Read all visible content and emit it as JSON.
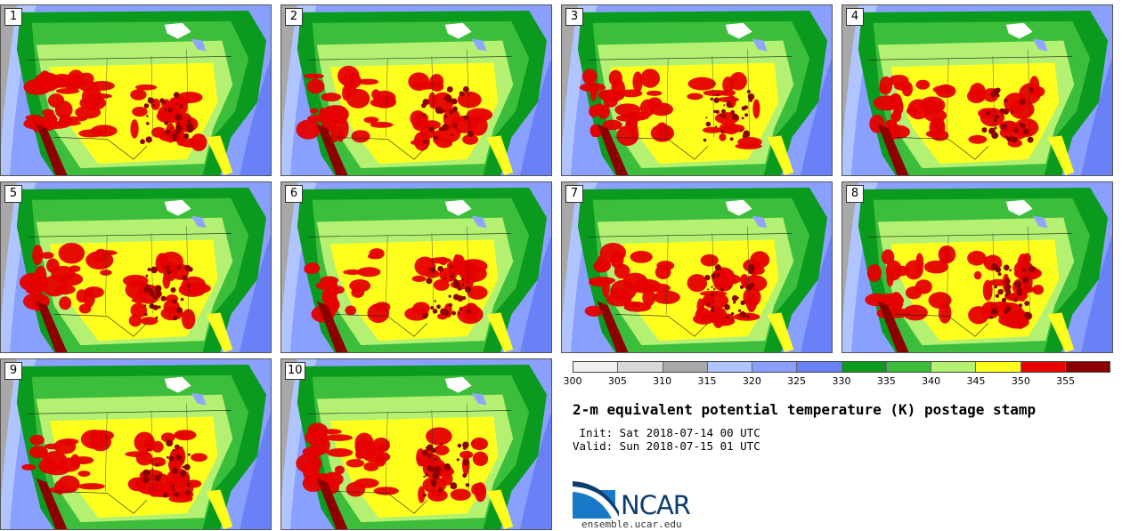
{
  "stamps": [
    {
      "label": "1"
    },
    {
      "label": "2"
    },
    {
      "label": "3"
    },
    {
      "label": "4"
    },
    {
      "label": "5"
    },
    {
      "label": "6"
    },
    {
      "label": "7"
    },
    {
      "label": "8"
    },
    {
      "label": "9"
    },
    {
      "label": "10"
    }
  ],
  "colorbar": {
    "colors": [
      "#f0f0f0",
      "#d8d8d8",
      "#a8a8a8",
      "#b0c4ff",
      "#8aa0ff",
      "#6a80f6",
      "#0a9a1e",
      "#3cbe3c",
      "#b4f072",
      "#ffff1e",
      "#e60000",
      "#8c0000"
    ],
    "ticks": [
      "300",
      "305",
      "310",
      "315",
      "320",
      "325",
      "330",
      "335",
      "340",
      "345",
      "350",
      "355"
    ]
  },
  "title": "2-m equivalent potential temperature (K) postage stamp",
  "init_line": " Init: Sat 2018-07-14 00 UTC",
  "valid_line": "Valid: Sun 2018-07-15 01 UTC",
  "logo": {
    "text": "NCAR",
    "site": "ensemble.ucar.edu"
  }
}
